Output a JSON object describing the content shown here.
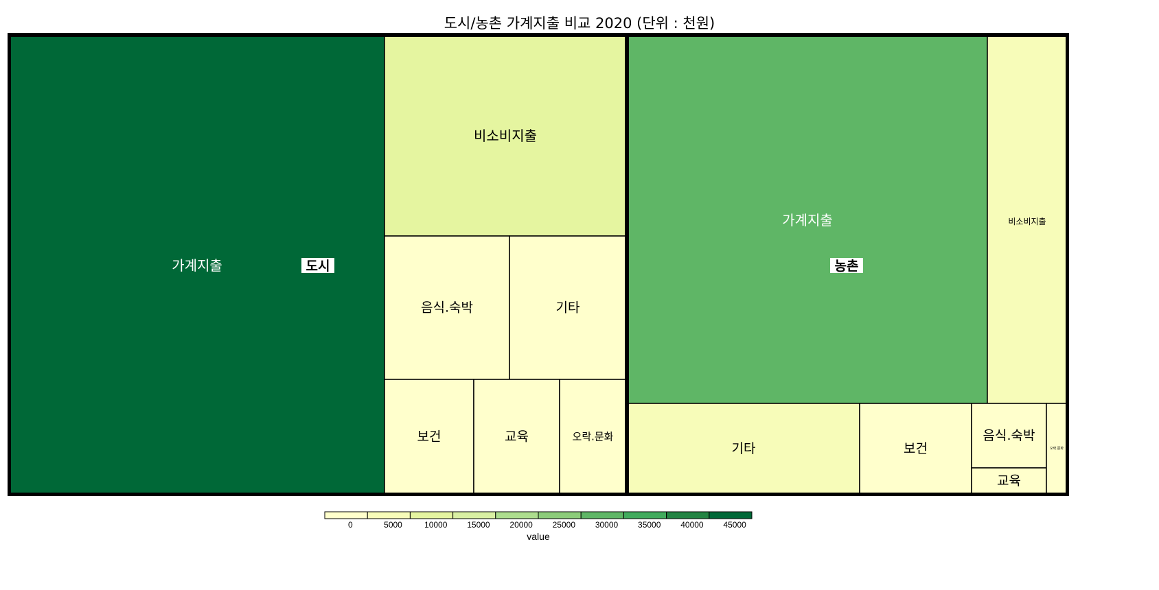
{
  "chart_data": {
    "type": "treemap",
    "title": "도시/농촌 가계지출 비교 2020 (단위 : 천원)",
    "groups": [
      {
        "name": "도시",
        "items": [
          {
            "label": "가계지출",
            "value": 45000
          },
          {
            "label": "비소비지출",
            "value": 11000
          },
          {
            "label": "음식.숙박",
            "value": 4200
          },
          {
            "label": "기타",
            "value": 3700
          },
          {
            "label": "보건",
            "value": 2400
          },
          {
            "label": "교육",
            "value": 2300
          },
          {
            "label": "오락.문화",
            "value": 1800
          }
        ]
      },
      {
        "name": "농촌",
        "items": [
          {
            "label": "가계지출",
            "value": 32000
          },
          {
            "label": "비소비지출",
            "value": 7100
          },
          {
            "label": "기타",
            "value": 6400
          },
          {
            "label": "보건",
            "value": 3100
          },
          {
            "label": "음식.숙박",
            "value": 1400
          },
          {
            "label": "교육",
            "value": 500
          },
          {
            "label": "오락.문화",
            "value": 420
          }
        ]
      }
    ],
    "legend": {
      "title": "value",
      "ticks": [
        "0",
        "5000",
        "10000",
        "15000",
        "20000",
        "25000",
        "30000",
        "35000",
        "40000",
        "45000"
      ],
      "colors": [
        "#ffffcc",
        "#f7fcb9",
        "#e5f5a0",
        "#d9f0a3",
        "#addd8e",
        "#8ccc7a",
        "#5fb666",
        "#41ab5d",
        "#238443",
        "#006837"
      ]
    }
  }
}
